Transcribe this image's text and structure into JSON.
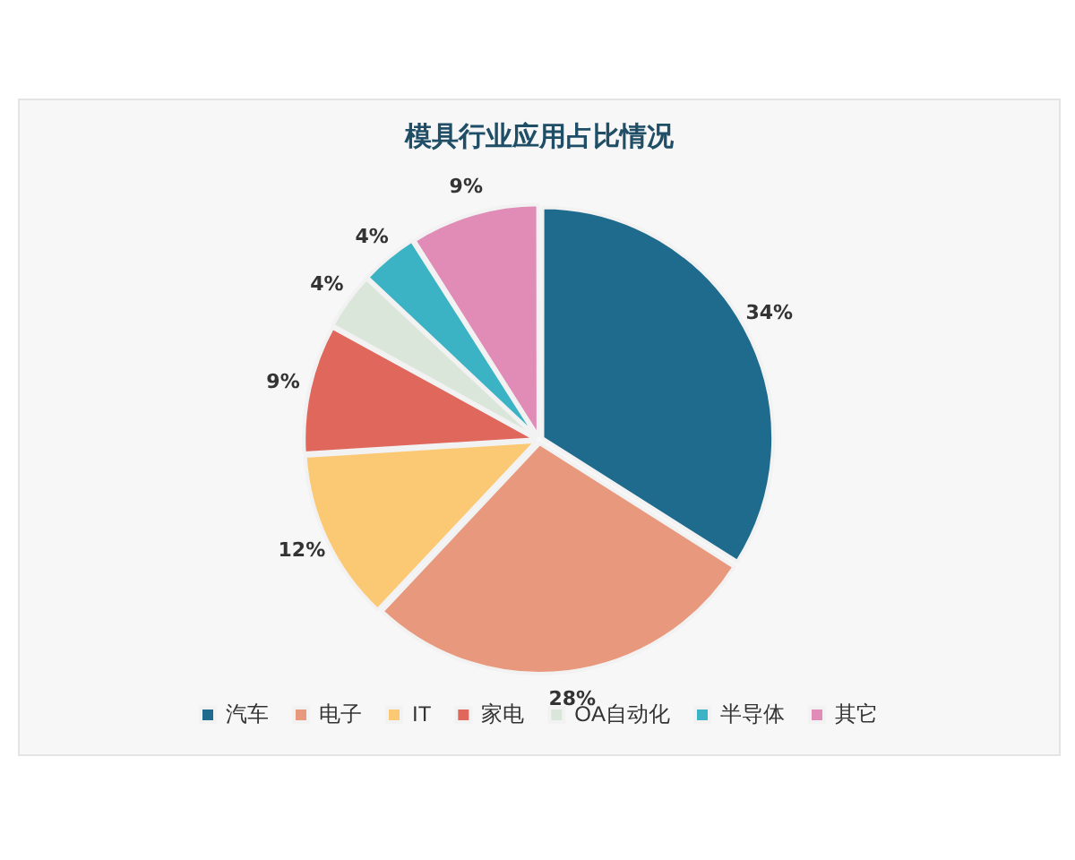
{
  "chart_data": {
    "type": "pie",
    "title": "模具行业应用占比情况",
    "categories": [
      "汽车",
      "电子",
      "IT",
      "家电",
      "OA自动化",
      "半导体",
      "其它"
    ],
    "values": [
      34,
      28,
      12,
      9,
      4,
      4,
      9
    ],
    "colors": [
      "#1f6b8e",
      "#e8987c",
      "#fbc874",
      "#e0675c",
      "#dbe6da",
      "#3cb3c4",
      "#e08cb6"
    ],
    "value_labels": [
      "34%",
      "28%",
      "12%",
      "9%",
      "4%",
      "4%",
      "9%"
    ],
    "legend": "bottom"
  }
}
